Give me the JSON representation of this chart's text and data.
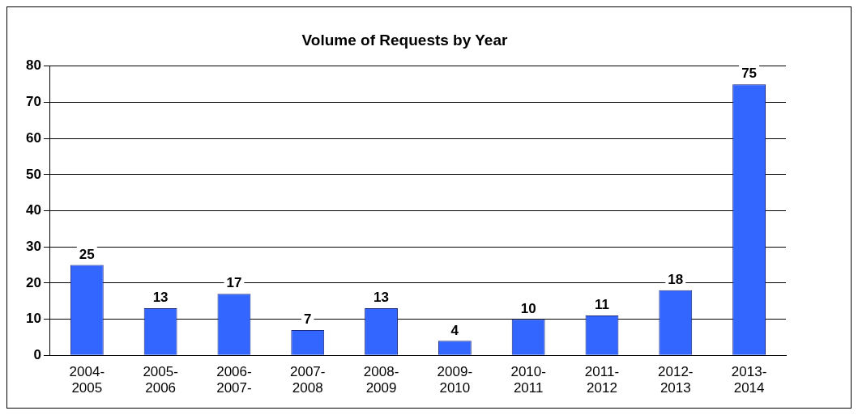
{
  "chart_data": {
    "type": "bar",
    "title": "Volume of Requests by Year",
    "categories": [
      "2004-2005",
      "2005-2006",
      "2006-2007-",
      "2007-2008",
      "2008-2009",
      "2009-2010",
      "2010-2011",
      "2011-2012",
      "2012-2013",
      "2013-2014"
    ],
    "values": [
      25,
      13,
      17,
      7,
      13,
      4,
      10,
      11,
      18,
      75
    ],
    "color": "#3366ff",
    "ylim": [
      0,
      80
    ],
    "yticks": [
      0,
      10,
      20,
      30,
      40,
      50,
      60,
      70,
      80
    ],
    "grid": "y",
    "data_labels": true
  }
}
